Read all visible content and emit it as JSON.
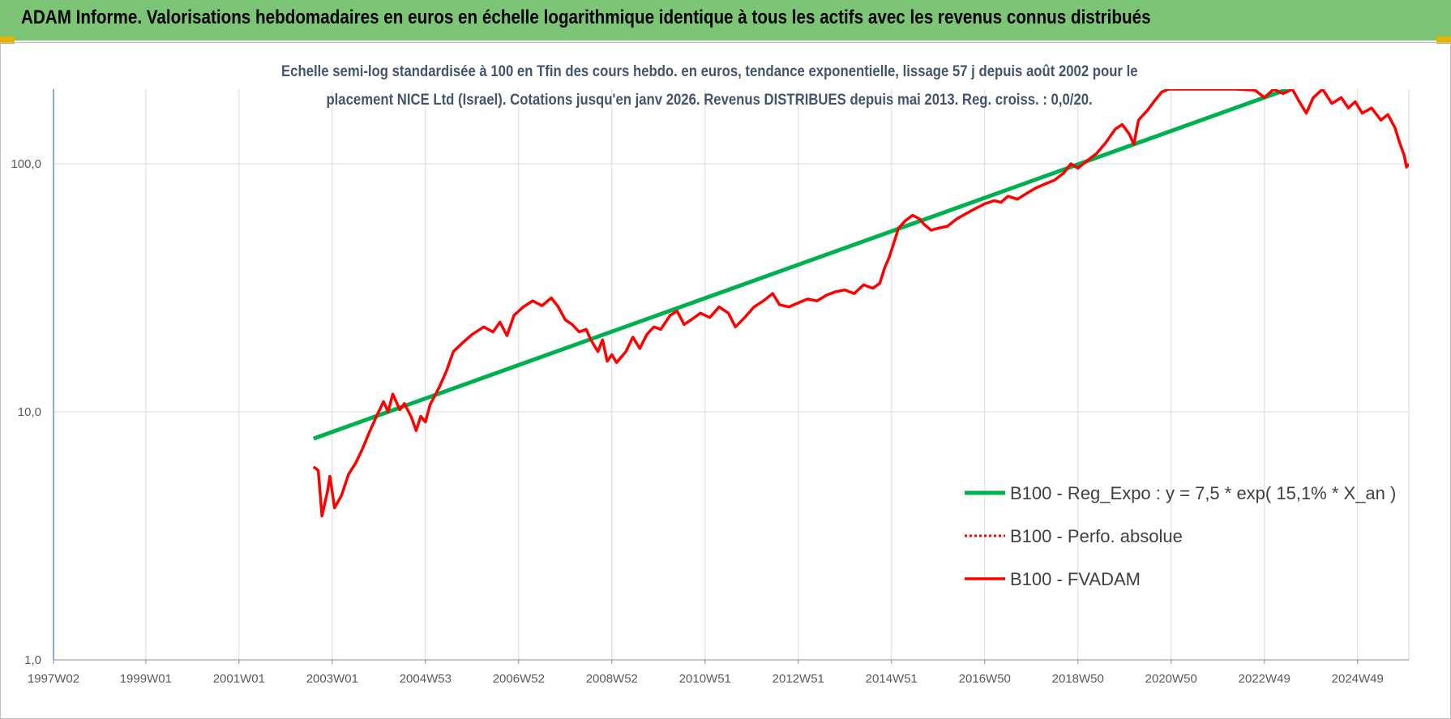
{
  "banner": {
    "title": "ADAM Informe. Valorisations hebdomadaires en euros en échelle logarithmique identique à tous les actifs avec les revenus connus distribués"
  },
  "colors": {
    "banner": "#7dc576",
    "regression": "#00b050",
    "fvadam": "#ff0000",
    "perf": "#ff0000",
    "grid": "#d9d9d9"
  },
  "chart_data": {
    "type": "line",
    "title_line1": "Echelle semi-log standardisée à 100 en Tfin des cours hebdo. en euros, tendance exponentielle, lissage 57 j depuis août 2002 pour le",
    "title_line2": "placement NICE Ltd (Israel). Cotations jusqu'en janv 2026. Revenus DISTRIBUES depuis mai 2013. Reg. croiss. : 0,0/20.",
    "y_scale": "log",
    "ylim": [
      1,
      200
    ],
    "y_ticks": [
      {
        "value": 1,
        "label": "1,0"
      },
      {
        "value": 10,
        "label": "10,0"
      },
      {
        "value": 100,
        "label": "100,0"
      }
    ],
    "xlim": [
      1997.02,
      2026.1
    ],
    "x_ticks": [
      {
        "value": 1997.02,
        "label": "1997W02"
      },
      {
        "value": 1999.0,
        "label": "1999W01"
      },
      {
        "value": 2001.0,
        "label": "2001W01"
      },
      {
        "value": 2003.0,
        "label": "2003W01"
      },
      {
        "value": 2005.0,
        "label": "2004W53"
      },
      {
        "value": 2007.0,
        "label": "2006W52"
      },
      {
        "value": 2009.0,
        "label": "2008W52"
      },
      {
        "value": 2011.0,
        "label": "2010W51"
      },
      {
        "value": 2013.0,
        "label": "2012W51"
      },
      {
        "value": 2015.0,
        "label": "2014W51"
      },
      {
        "value": 2017.0,
        "label": "2016W50"
      },
      {
        "value": 2019.0,
        "label": "2018W50"
      },
      {
        "value": 2021.0,
        "label": "2020W50"
      },
      {
        "value": 2023.0,
        "label": "2022W49"
      },
      {
        "value": 2025.0,
        "label": "2024W49"
      }
    ],
    "grid": "vertical",
    "legend_position": "bottom-right",
    "series": [
      {
        "name": "B100 - Reg_Expo : y = 7,5 * exp( 15,1% *  X_an )",
        "style": "solid-thick",
        "color": "#00b050",
        "points": [
          [
            2002.6,
            7.8
          ],
          [
            2023.5,
            200
          ]
        ]
      },
      {
        "name": "B100 - Perfo. absolue",
        "style": "dotted",
        "color": "#ff0000",
        "points": []
      },
      {
        "name": "B100 - FVADAM",
        "style": "solid",
        "color": "#ff0000",
        "points": [
          [
            2002.6,
            6.0
          ],
          [
            2002.7,
            5.8
          ],
          [
            2002.78,
            3.8
          ],
          [
            2002.9,
            4.8
          ],
          [
            2002.95,
            5.5
          ],
          [
            2003.05,
            4.1
          ],
          [
            2003.2,
            4.6
          ],
          [
            2003.35,
            5.6
          ],
          [
            2003.5,
            6.2
          ],
          [
            2003.65,
            7.1
          ],
          [
            2003.8,
            8.3
          ],
          [
            2003.95,
            9.6
          ],
          [
            2004.1,
            11.0
          ],
          [
            2004.2,
            10.0
          ],
          [
            2004.3,
            11.8
          ],
          [
            2004.45,
            10.2
          ],
          [
            2004.55,
            10.8
          ],
          [
            2004.7,
            9.5
          ],
          [
            2004.8,
            8.4
          ],
          [
            2004.9,
            9.6
          ],
          [
            2005.0,
            9.1
          ],
          [
            2005.1,
            10.7
          ],
          [
            2005.3,
            12.6
          ],
          [
            2005.45,
            14.6
          ],
          [
            2005.6,
            17.5
          ],
          [
            2005.8,
            19.0
          ],
          [
            2006.0,
            20.5
          ],
          [
            2006.25,
            22.0
          ],
          [
            2006.45,
            21.0
          ],
          [
            2006.6,
            23.0
          ],
          [
            2006.75,
            20.3
          ],
          [
            2006.9,
            24.5
          ],
          [
            2007.1,
            26.5
          ],
          [
            2007.3,
            28.0
          ],
          [
            2007.5,
            26.8
          ],
          [
            2007.7,
            28.8
          ],
          [
            2007.85,
            26.5
          ],
          [
            2008.0,
            23.5
          ],
          [
            2008.15,
            22.5
          ],
          [
            2008.3,
            21.0
          ],
          [
            2008.45,
            21.5
          ],
          [
            2008.55,
            19.5
          ],
          [
            2008.7,
            17.5
          ],
          [
            2008.8,
            19.5
          ],
          [
            2008.9,
            16.0
          ],
          [
            2009.0,
            17.0
          ],
          [
            2009.1,
            15.8
          ],
          [
            2009.3,
            17.5
          ],
          [
            2009.45,
            20.0
          ],
          [
            2009.6,
            18.0
          ],
          [
            2009.75,
            20.5
          ],
          [
            2009.9,
            22.0
          ],
          [
            2010.05,
            21.5
          ],
          [
            2010.25,
            24.5
          ],
          [
            2010.4,
            25.5
          ],
          [
            2010.55,
            22.5
          ],
          [
            2010.7,
            23.5
          ],
          [
            2010.9,
            25.0
          ],
          [
            2011.1,
            24.0
          ],
          [
            2011.3,
            26.5
          ],
          [
            2011.5,
            25.0
          ],
          [
            2011.65,
            22.0
          ],
          [
            2011.85,
            24.0
          ],
          [
            2012.05,
            26.5
          ],
          [
            2012.25,
            28.0
          ],
          [
            2012.45,
            30.0
          ],
          [
            2012.6,
            27.0
          ],
          [
            2012.8,
            26.5
          ],
          [
            2013.0,
            27.5
          ],
          [
            2013.2,
            28.5
          ],
          [
            2013.4,
            28.0
          ],
          [
            2013.6,
            29.5
          ],
          [
            2013.8,
            30.5
          ],
          [
            2014.0,
            31.0
          ],
          [
            2014.2,
            30.0
          ],
          [
            2014.4,
            32.5
          ],
          [
            2014.6,
            31.5
          ],
          [
            2014.75,
            33.0
          ],
          [
            2014.85,
            38.0
          ],
          [
            2014.95,
            42.0
          ],
          [
            2015.05,
            48.0
          ],
          [
            2015.15,
            55.0
          ],
          [
            2015.3,
            59.0
          ],
          [
            2015.45,
            62.0
          ],
          [
            2015.6,
            60.0
          ],
          [
            2015.7,
            57.0
          ],
          [
            2015.85,
            54.0
          ],
          [
            2016.0,
            55.0
          ],
          [
            2016.2,
            56.0
          ],
          [
            2016.4,
            60.0
          ],
          [
            2016.6,
            63.0
          ],
          [
            2016.8,
            66.0
          ],
          [
            2017.0,
            69.0
          ],
          [
            2017.2,
            71.0
          ],
          [
            2017.35,
            70.0
          ],
          [
            2017.5,
            74.0
          ],
          [
            2017.7,
            72.0
          ],
          [
            2017.9,
            76.0
          ],
          [
            2018.1,
            80.0
          ],
          [
            2018.3,
            83.0
          ],
          [
            2018.5,
            86.0
          ],
          [
            2018.7,
            92.0
          ],
          [
            2018.85,
            100.0
          ],
          [
            2019.0,
            96.0
          ],
          [
            2019.2,
            103.0
          ],
          [
            2019.4,
            110.0
          ],
          [
            2019.6,
            122.0
          ],
          [
            2019.8,
            138.0
          ],
          [
            2019.95,
            144.0
          ],
          [
            2020.1,
            132.0
          ],
          [
            2020.2,
            120.0
          ],
          [
            2020.3,
            150.0
          ],
          [
            2020.5,
            165.0
          ],
          [
            2020.65,
            180.0
          ],
          [
            2020.8,
            195.0
          ],
          [
            2020.95,
            200.0
          ],
          [
            2021.2,
            200.0
          ],
          [
            2021.6,
            200.0
          ],
          [
            2022.0,
            200.0
          ],
          [
            2022.4,
            200.0
          ],
          [
            2022.8,
            198.0
          ],
          [
            2023.0,
            185.0
          ],
          [
            2023.2,
            200.0
          ],
          [
            2023.4,
            192.0
          ],
          [
            2023.6,
            200.0
          ],
          [
            2023.75,
            178.0
          ],
          [
            2023.9,
            160.0
          ],
          [
            2024.05,
            185.0
          ],
          [
            2024.25,
            200.0
          ],
          [
            2024.45,
            175.0
          ],
          [
            2024.65,
            185.0
          ],
          [
            2024.8,
            168.0
          ],
          [
            2024.95,
            178.0
          ],
          [
            2025.1,
            160.0
          ],
          [
            2025.3,
            168.0
          ],
          [
            2025.5,
            150.0
          ],
          [
            2025.65,
            158.0
          ],
          [
            2025.8,
            140.0
          ],
          [
            2025.9,
            122.0
          ],
          [
            2026.0,
            108.0
          ],
          [
            2026.05,
            97.0
          ],
          [
            2026.1,
            100.0
          ]
        ]
      }
    ]
  }
}
